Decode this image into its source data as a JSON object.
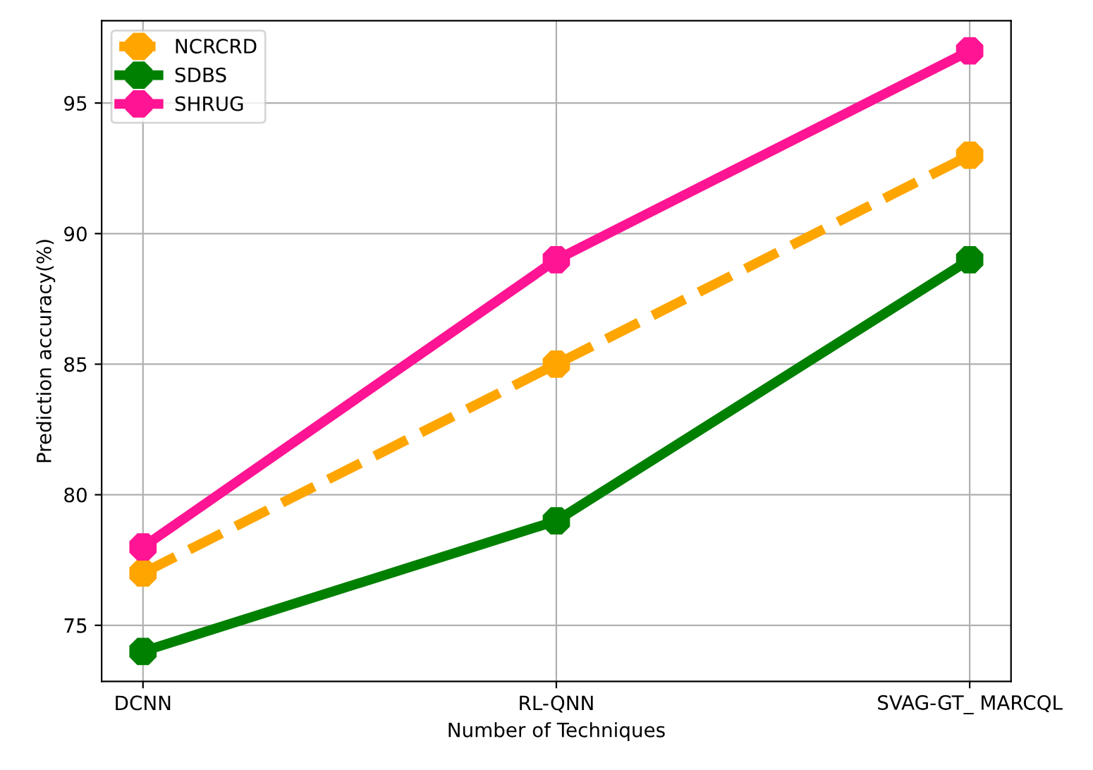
{
  "chart_data": {
    "type": "line",
    "xlabel": "Number of Techniques",
    "ylabel": "Prediction accuracy(%)",
    "categories": [
      "DCNN",
      "RL-QNN",
      "SVAG-GT_ MARCQL"
    ],
    "series": [
      {
        "name": "NCRCRD",
        "color": "#ffa500",
        "values": [
          77,
          85,
          93
        ],
        "line_style": "dashed"
      },
      {
        "name": "SDBS",
        "color": "#008000",
        "values": [
          74,
          79,
          89
        ],
        "line_style": "solid"
      },
      {
        "name": "SHRUG",
        "color": "#ff1493",
        "values": [
          78,
          89,
          97
        ],
        "line_style": "solid"
      }
    ],
    "ylim": [
      72.85,
      98.15
    ],
    "yticks": [
      75,
      80,
      85,
      90,
      95
    ],
    "grid": true,
    "legend": "top left",
    "marker": "circle"
  }
}
